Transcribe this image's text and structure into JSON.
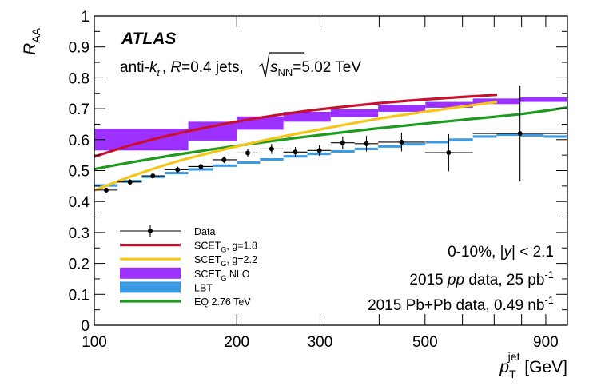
{
  "chart_data": {
    "type": "scatter",
    "title": "",
    "experiment_label": "ATLAS",
    "jet_label": {
      "prefix": "anti-",
      "k": "k",
      "k_sub": "t",
      "R_text": "R",
      "R_value": "=0.4 jets, ",
      "sqrt_s": "s",
      "sqrt_s_sub": "NN",
      "energy": "=5.02 TeV"
    },
    "xlabel": {
      "main": "p",
      "sub": "T",
      "sup": "jet",
      "unit": " [GeV]"
    },
    "ylabel": {
      "main": "R",
      "sub": "AA"
    },
    "xscale": "log",
    "xlim": [
      100,
      1000
    ],
    "ylim": [
      0,
      1
    ],
    "x_tick_labels": [
      {
        "value": 100,
        "label": "100"
      },
      {
        "value": 200,
        "label": "200"
      },
      {
        "value": 300,
        "label": "300"
      },
      {
        "value": 500,
        "label": "500"
      },
      {
        "value": 900,
        "label": "900"
      }
    ],
    "y_tick_labels": [
      {
        "value": 0,
        "label": "0"
      },
      {
        "value": 0.1,
        "label": "0.1"
      },
      {
        "value": 0.2,
        "label": "0.2"
      },
      {
        "value": 0.3,
        "label": "0.3"
      },
      {
        "value": 0.4,
        "label": "0.4"
      },
      {
        "value": 0.5,
        "label": "0.5"
      },
      {
        "value": 0.6,
        "label": "0.6"
      },
      {
        "value": 0.7,
        "label": "0.7"
      },
      {
        "value": 0.8,
        "label": "0.8"
      },
      {
        "value": 0.9,
        "label": "0.9"
      },
      {
        "value": 1,
        "label": "1"
      }
    ],
    "annotations": {
      "centrality": {
        "main": "0-10%, |",
        "var": "y",
        "rest": "| < 2.1"
      },
      "pp": {
        "prefix": "2015 ",
        "pp": "pp",
        "mid": " data, 25 pb",
        "sup": "-1"
      },
      "pbpb": {
        "text": "2015 Pb+Pb data, 0.49 nb",
        "sup": "-1"
      }
    },
    "colors": {
      "data": "#000000",
      "scet18": "#c8102e",
      "scet22": "#f5c518",
      "scet_nlo": "#9b30ff",
      "lbt": "#3b9ae1",
      "eq276": "#1e9a1e"
    },
    "legend": {
      "placement": "bottom-left",
      "entries": [
        {
          "key": "data",
          "label": "Data",
          "style": "marker"
        },
        {
          "key": "scet18",
          "label": "SCET",
          "sub": "G",
          "rest": ", g=1.8",
          "style": "line"
        },
        {
          "key": "scet22",
          "label": "SCET",
          "sub": "G",
          "rest": ", g=2.2",
          "style": "line"
        },
        {
          "key": "scet_nlo",
          "label": "SCET",
          "sub": "G",
          "rest": " NLO",
          "style": "box"
        },
        {
          "key": "lbt",
          "label": "LBT",
          "style": "box"
        },
        {
          "key": "eq276",
          "label": "EQ 2.76 TeV",
          "style": "line"
        }
      ]
    },
    "series": [
      {
        "name": "Data",
        "key": "data",
        "kind": "points",
        "points": [
          {
            "x": 106,
            "xlo": 100,
            "xhi": 112,
            "y": 0.437,
            "yerr": 0.008
          },
          {
            "x": 119,
            "xlo": 112,
            "xhi": 126,
            "y": 0.463,
            "yerr": 0.009
          },
          {
            "x": 133,
            "xlo": 126,
            "xhi": 141,
            "y": 0.483,
            "yerr": 0.01
          },
          {
            "x": 150,
            "xlo": 141,
            "xhi": 158,
            "y": 0.503,
            "yerr": 0.01
          },
          {
            "x": 168,
            "xlo": 158,
            "xhi": 178,
            "y": 0.513,
            "yerr": 0.01
          },
          {
            "x": 188,
            "xlo": 178,
            "xhi": 200,
            "y": 0.535,
            "yerr": 0.011
          },
          {
            "x": 211,
            "xlo": 200,
            "xhi": 224,
            "y": 0.557,
            "yerr": 0.013
          },
          {
            "x": 237,
            "xlo": 224,
            "xhi": 251,
            "y": 0.57,
            "yerr": 0.016
          },
          {
            "x": 266,
            "xlo": 251,
            "xhi": 282,
            "y": 0.56,
            "yerr": 0.016
          },
          {
            "x": 299,
            "xlo": 282,
            "xhi": 316,
            "y": 0.565,
            "yerr": 0.017
          },
          {
            "x": 335,
            "xlo": 316,
            "xhi": 355,
            "y": 0.59,
            "yerr": 0.02
          },
          {
            "x": 376,
            "xlo": 355,
            "xhi": 398,
            "y": 0.587,
            "yerr": 0.025
          },
          {
            "x": 446,
            "xlo": 398,
            "xhi": 500,
            "y": 0.592,
            "yerr": 0.03
          },
          {
            "x": 561,
            "xlo": 500,
            "xhi": 631,
            "y": 0.558,
            "yerr": 0.06
          },
          {
            "x": 794,
            "xlo": 631,
            "xhi": 1000,
            "y": 0.62,
            "yerr": 0.155
          }
        ]
      },
      {
        "name": "SCET_G, g=1.8",
        "key": "scet18",
        "kind": "line",
        "points": [
          [
            100,
            0.545
          ],
          [
            120,
            0.583
          ],
          [
            150,
            0.62
          ],
          [
            200,
            0.658
          ],
          [
            250,
            0.682
          ],
          [
            300,
            0.698
          ],
          [
            400,
            0.718
          ],
          [
            500,
            0.73
          ],
          [
            600,
            0.738
          ],
          [
            710,
            0.745
          ]
        ]
      },
      {
        "name": "SCET_G, g=2.2",
        "key": "scet22",
        "kind": "line",
        "points": [
          [
            100,
            0.436
          ],
          [
            120,
            0.482
          ],
          [
            150,
            0.53
          ],
          [
            200,
            0.578
          ],
          [
            250,
            0.61
          ],
          [
            300,
            0.633
          ],
          [
            400,
            0.668
          ],
          [
            500,
            0.69
          ],
          [
            600,
            0.707
          ],
          [
            710,
            0.722
          ]
        ]
      },
      {
        "name": "SCET_G NLO",
        "key": "scet_nlo",
        "kind": "band",
        "bins": [
          {
            "xlo": 100,
            "xhi": 158,
            "ylo": 0.565,
            "yhi": 0.635
          },
          {
            "xlo": 158,
            "xhi": 200,
            "ylo": 0.597,
            "yhi": 0.658
          },
          {
            "xlo": 200,
            "xhi": 251,
            "ylo": 0.632,
            "yhi": 0.675
          },
          {
            "xlo": 251,
            "xhi": 316,
            "ylo": 0.658,
            "yhi": 0.69
          },
          {
            "xlo": 316,
            "xhi": 398,
            "ylo": 0.673,
            "yhi": 0.698
          },
          {
            "xlo": 398,
            "xhi": 501,
            "ylo": 0.69,
            "yhi": 0.712
          },
          {
            "xlo": 501,
            "xhi": 631,
            "ylo": 0.703,
            "yhi": 0.722
          },
          {
            "xlo": 631,
            "xhi": 794,
            "ylo": 0.715,
            "yhi": 0.733
          },
          {
            "xlo": 794,
            "xhi": 1000,
            "ylo": 0.722,
            "yhi": 0.737
          }
        ]
      },
      {
        "name": "LBT",
        "key": "lbt",
        "kind": "steps",
        "bins": [
          {
            "xlo": 100,
            "xhi": 112,
            "ylo": 0.448,
            "yhi": 0.456
          },
          {
            "xlo": 112,
            "xhi": 126,
            "ylo": 0.462,
            "yhi": 0.47
          },
          {
            "xlo": 126,
            "xhi": 141,
            "ylo": 0.476,
            "yhi": 0.484
          },
          {
            "xlo": 141,
            "xhi": 158,
            "ylo": 0.488,
            "yhi": 0.496
          },
          {
            "xlo": 158,
            "xhi": 178,
            "ylo": 0.5,
            "yhi": 0.508
          },
          {
            "xlo": 178,
            "xhi": 200,
            "ylo": 0.512,
            "yhi": 0.52
          },
          {
            "xlo": 200,
            "xhi": 224,
            "ylo": 0.522,
            "yhi": 0.53
          },
          {
            "xlo": 224,
            "xhi": 251,
            "ylo": 0.532,
            "yhi": 0.54
          },
          {
            "xlo": 251,
            "xhi": 282,
            "ylo": 0.542,
            "yhi": 0.55
          },
          {
            "xlo": 282,
            "xhi": 316,
            "ylo": 0.55,
            "yhi": 0.558
          },
          {
            "xlo": 316,
            "xhi": 355,
            "ylo": 0.558,
            "yhi": 0.566
          },
          {
            "xlo": 355,
            "xhi": 398,
            "ylo": 0.566,
            "yhi": 0.574
          },
          {
            "xlo": 398,
            "xhi": 447,
            "ylo": 0.574,
            "yhi": 0.582
          },
          {
            "xlo": 447,
            "xhi": 501,
            "ylo": 0.581,
            "yhi": 0.589
          },
          {
            "xlo": 501,
            "xhi": 562,
            "ylo": 0.588,
            "yhi": 0.596
          },
          {
            "xlo": 562,
            "xhi": 631,
            "ylo": 0.596,
            "yhi": 0.604
          },
          {
            "xlo": 631,
            "xhi": 708,
            "ylo": 0.606,
            "yhi": 0.614
          },
          {
            "xlo": 708,
            "xhi": 794,
            "ylo": 0.612,
            "yhi": 0.62
          },
          {
            "xlo": 794,
            "xhi": 891,
            "ylo": 0.61,
            "yhi": 0.618
          },
          {
            "xlo": 891,
            "xhi": 1000,
            "ylo": 0.606,
            "yhi": 0.614
          }
        ]
      },
      {
        "name": "EQ 2.76 TeV",
        "key": "eq276",
        "kind": "line",
        "points": [
          [
            100,
            0.505
          ],
          [
            120,
            0.527
          ],
          [
            150,
            0.552
          ],
          [
            200,
            0.58
          ],
          [
            250,
            0.6
          ],
          [
            300,
            0.615
          ],
          [
            400,
            0.637
          ],
          [
            500,
            0.652
          ],
          [
            600,
            0.664
          ],
          [
            800,
            0.683
          ],
          [
            1000,
            0.704
          ]
        ]
      }
    ]
  }
}
